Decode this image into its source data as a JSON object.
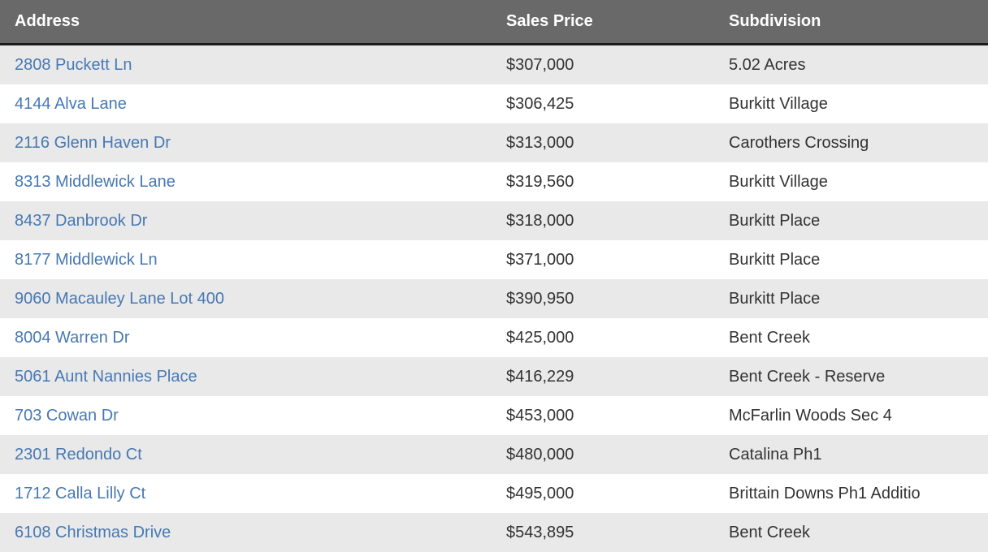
{
  "table": {
    "columns": [
      {
        "key": "address",
        "label": "Address"
      },
      {
        "key": "price",
        "label": "Sales Price"
      },
      {
        "key": "subdivision",
        "label": "Subdivision"
      }
    ],
    "rows": [
      {
        "address": "2808 Puckett Ln",
        "price": "$307,000",
        "subdivision": "5.02 Acres"
      },
      {
        "address": "4144 Alva Lane",
        "price": "$306,425",
        "subdivision": "Burkitt Village"
      },
      {
        "address": "2116 Glenn Haven Dr",
        "price": "$313,000",
        "subdivision": "Carothers Crossing"
      },
      {
        "address": "8313 Middlewick Lane",
        "price": "$319,560",
        "subdivision": "Burkitt Village"
      },
      {
        "address": "8437 Danbrook Dr",
        "price": "$318,000",
        "subdivision": "Burkitt Place"
      },
      {
        "address": "8177 Middlewick Ln",
        "price": "$371,000",
        "subdivision": "Burkitt Place"
      },
      {
        "address": "9060 Macauley Lane Lot 400",
        "price": "$390,950",
        "subdivision": "Burkitt Place"
      },
      {
        "address": "8004 Warren Dr",
        "price": "$425,000",
        "subdivision": "Bent Creek"
      },
      {
        "address": "5061 Aunt Nannies Place",
        "price": "$416,229",
        "subdivision": "Bent Creek - Reserve"
      },
      {
        "address": "703 Cowan Dr",
        "price": "$453,000",
        "subdivision": "McFarlin Woods Sec 4"
      },
      {
        "address": "2301 Redondo Ct",
        "price": "$480,000",
        "subdivision": "Catalina Ph1"
      },
      {
        "address": "1712 Calla Lilly Ct",
        "price": "$495,000",
        "subdivision": "Brittain Downs Ph1 Additio"
      },
      {
        "address": "6108 Christmas Drive",
        "price": "$543,895",
        "subdivision": "Bent Creek"
      }
    ]
  },
  "colors": {
    "header_bg": "#696969",
    "header_text": "#ffffff",
    "header_border": "#1b1b1b",
    "row_alt_bg": "#e9e9e9",
    "row_bg": "#ffffff",
    "link": "#4678b4",
    "text": "#333333"
  }
}
